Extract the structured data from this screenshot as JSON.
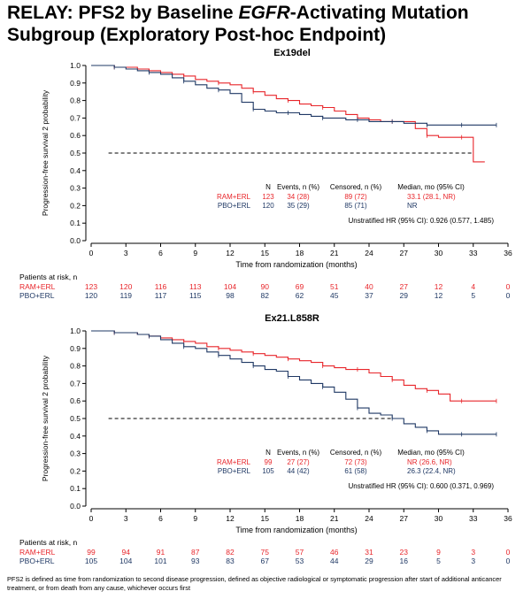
{
  "title": {
    "part1": "RELAY: PFS2 by Baseline ",
    "italic": "EGFR",
    "part2": "-Activating Mutation",
    "line2": "Subgroup (Exploratory Post-hoc Endpoint)"
  },
  "footnote": "PFS2 is defined as time from randomization to second disease progression, defined as objective radiological or symptomatic progression after start of additional anticancer treatment, or from death from any cause, whichever occurs first",
  "colors": {
    "ram": "#e8262b",
    "pbo": "#1f3864",
    "axis": "#000000"
  },
  "chart_data": [
    {
      "type": "line",
      "title": "Ex19del",
      "xlabel": "Time from randomization (months)",
      "ylabel": "Progression-free survival 2 probability",
      "xlim": [
        0,
        36
      ],
      "ylim": [
        0,
        1.0
      ],
      "xticks": [
        "0",
        "3",
        "6",
        "9",
        "12",
        "15",
        "18",
        "21",
        "24",
        "27",
        "30",
        "33",
        "36"
      ],
      "yticks": [
        "0.0",
        "0.1",
        "0.2",
        "0.3",
        "0.4",
        "0.5",
        "0.6",
        "0.7",
        "0.8",
        "0.9",
        "1.0"
      ],
      "median_ref": {
        "y": 0.5,
        "x_start": 1.5,
        "x_end": 33
      },
      "series": [
        {
          "name": "RAM+ERL",
          "color_key": "ram",
          "x": [
            0,
            1,
            2,
            3,
            4,
            5,
            6,
            7,
            8,
            9,
            10,
            11,
            12,
            13,
            14,
            15,
            16,
            17,
            18,
            19,
            20,
            21,
            22,
            23,
            24,
            25,
            26,
            27,
            28,
            29,
            30,
            31,
            32,
            33,
            34
          ],
          "y": [
            1.0,
            1.0,
            0.99,
            0.99,
            0.98,
            0.97,
            0.96,
            0.95,
            0.94,
            0.92,
            0.91,
            0.9,
            0.89,
            0.87,
            0.85,
            0.83,
            0.81,
            0.8,
            0.78,
            0.77,
            0.76,
            0.74,
            0.72,
            0.7,
            0.69,
            0.68,
            0.68,
            0.68,
            0.64,
            0.6,
            0.59,
            0.59,
            0.59,
            0.45,
            0.45
          ]
        },
        {
          "name": "PBO+ERL",
          "color_key": "pbo",
          "x": [
            0,
            1,
            2,
            3,
            4,
            5,
            6,
            7,
            8,
            9,
            10,
            11,
            12,
            13,
            14,
            15,
            16,
            17,
            18,
            19,
            20,
            21,
            22,
            23,
            24,
            25,
            26,
            27,
            28,
            29,
            30,
            31,
            32,
            33,
            34,
            35
          ],
          "y": [
            1.0,
            1.0,
            0.99,
            0.98,
            0.97,
            0.96,
            0.95,
            0.93,
            0.91,
            0.89,
            0.87,
            0.86,
            0.84,
            0.79,
            0.75,
            0.74,
            0.73,
            0.73,
            0.72,
            0.71,
            0.7,
            0.7,
            0.69,
            0.69,
            0.68,
            0.68,
            0.68,
            0.67,
            0.67,
            0.66,
            0.66,
            0.66,
            0.66,
            0.66,
            0.66,
            0.66
          ]
        }
      ],
      "legend_table": {
        "headers": [
          "N",
          "Events, n (%)",
          "Censored, n (%)",
          "Median, mo (95% CI)"
        ],
        "rows": [
          {
            "label": "RAM+ERL",
            "color_key": "ram",
            "cells": [
              "123",
              "34 (28)",
              "89 (72)",
              "33.1 (28.1, NR)"
            ]
          },
          {
            "label": "PBO+ERL",
            "color_key": "pbo",
            "cells": [
              "120",
              "35 (29)",
              "85 (71)",
              "NR"
            ]
          }
        ],
        "hr": "Unstratified HR (95% CI): 0.926 (0.577, 1.485)"
      },
      "risk_table": {
        "heading": "Patients at risk, n",
        "rows": [
          {
            "label": "RAM+ERL",
            "color_key": "ram",
            "values": [
              "123",
              "120",
              "116",
              "113",
              "104",
              "90",
              "69",
              "51",
              "40",
              "27",
              "12",
              "4",
              "0"
            ]
          },
          {
            "label": "PBO+ERL",
            "color_key": "pbo",
            "values": [
              "120",
              "119",
              "117",
              "115",
              "98",
              "82",
              "62",
              "45",
              "37",
              "29",
              "12",
              "5",
              "0"
            ]
          }
        ]
      }
    },
    {
      "type": "line",
      "title": "Ex21.L858R",
      "xlabel": "Time from randomization (months)",
      "ylabel": "Progression-free survival 2 probability",
      "xlim": [
        0,
        36
      ],
      "ylim": [
        0,
        1.0
      ],
      "xticks": [
        "0",
        "3",
        "6",
        "9",
        "12",
        "15",
        "18",
        "21",
        "24",
        "27",
        "30",
        "33",
        "36"
      ],
      "yticks": [
        "0.0",
        "0.1",
        "0.2",
        "0.3",
        "0.4",
        "0.5",
        "0.6",
        "0.7",
        "0.8",
        "0.9",
        "1.0"
      ],
      "median_ref": {
        "y": 0.5,
        "x_start": 1.5,
        "x_end": 26.3
      },
      "series": [
        {
          "name": "RAM+ERL",
          "color_key": "ram",
          "x": [
            0,
            1,
            2,
            3,
            4,
            5,
            6,
            7,
            8,
            9,
            10,
            11,
            12,
            13,
            14,
            15,
            16,
            17,
            18,
            19,
            20,
            21,
            22,
            23,
            24,
            25,
            26,
            27,
            28,
            29,
            30,
            31,
            32,
            33,
            34,
            35
          ],
          "y": [
            1.0,
            1.0,
            0.99,
            0.99,
            0.98,
            0.97,
            0.96,
            0.95,
            0.94,
            0.93,
            0.91,
            0.9,
            0.89,
            0.88,
            0.87,
            0.86,
            0.85,
            0.84,
            0.83,
            0.82,
            0.8,
            0.79,
            0.78,
            0.78,
            0.76,
            0.74,
            0.72,
            0.69,
            0.67,
            0.66,
            0.64,
            0.6,
            0.6,
            0.6,
            0.6,
            0.6
          ]
        },
        {
          "name": "PBO+ERL",
          "color_key": "pbo",
          "x": [
            0,
            1,
            2,
            3,
            4,
            5,
            6,
            7,
            8,
            9,
            10,
            11,
            12,
            13,
            14,
            15,
            16,
            17,
            18,
            19,
            20,
            21,
            22,
            23,
            24,
            25,
            26,
            27,
            28,
            29,
            30,
            31,
            32,
            33,
            34,
            35
          ],
          "y": [
            1.0,
            1.0,
            0.99,
            0.99,
            0.98,
            0.97,
            0.95,
            0.93,
            0.91,
            0.9,
            0.88,
            0.86,
            0.84,
            0.82,
            0.8,
            0.78,
            0.77,
            0.74,
            0.72,
            0.7,
            0.68,
            0.65,
            0.61,
            0.56,
            0.53,
            0.52,
            0.5,
            0.47,
            0.45,
            0.43,
            0.41,
            0.41,
            0.41,
            0.41,
            0.41,
            0.41
          ]
        }
      ],
      "legend_table": {
        "headers": [
          "N",
          "Events, n (%)",
          "Censored, n (%)",
          "Median, mo (95% CI)"
        ],
        "rows": [
          {
            "label": "RAM+ERL",
            "color_key": "ram",
            "cells": [
              "99",
              "27 (27)",
              "72 (73)",
              "NR (26.6, NR)"
            ]
          },
          {
            "label": "PBO+ERL",
            "color_key": "pbo",
            "cells": [
              "105",
              "44 (42)",
              "61 (58)",
              "26.3 (22.4, NR)"
            ]
          }
        ],
        "hr": "Unstratified HR (95% CI): 0.600 (0.371, 0.969)"
      },
      "risk_table": {
        "heading": "Patients at risk, n",
        "rows": [
          {
            "label": "RAM+ERL",
            "color_key": "ram",
            "values": [
              "99",
              "94",
              "91",
              "87",
              "82",
              "75",
              "57",
              "46",
              "31",
              "23",
              "9",
              "3",
              "0"
            ]
          },
          {
            "label": "PBO+ERL",
            "color_key": "pbo",
            "values": [
              "105",
              "104",
              "101",
              "93",
              "83",
              "67",
              "53",
              "44",
              "29",
              "16",
              "5",
              "3",
              "0"
            ]
          }
        ]
      }
    }
  ]
}
